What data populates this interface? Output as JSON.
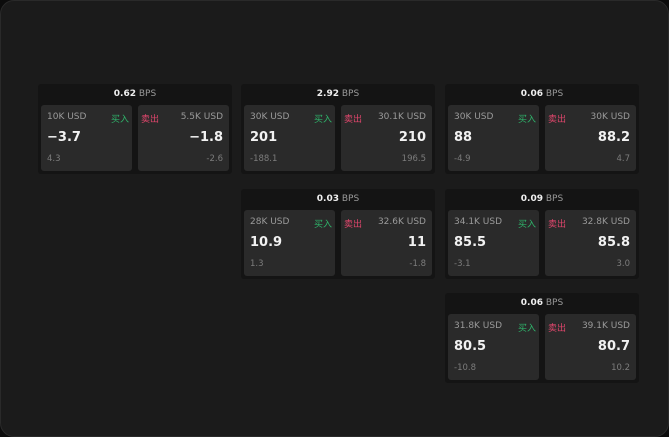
{
  "unit": "BPS",
  "buy_label": "买入",
  "sell_label": "卖出",
  "colors": {
    "buy": "#2fb36a",
    "sell": "#e0466c"
  },
  "cards": [
    {
      "spread": "0.62",
      "buy": {
        "amount": "10K USD",
        "price": "−3.7",
        "change": "4.3"
      },
      "sell": {
        "amount": "5.5K USD",
        "price": "−1.8",
        "change": "-2.6"
      }
    },
    {
      "spread": "2.92",
      "buy": {
        "amount": "30K USD",
        "price": "201",
        "change": "-188.1"
      },
      "sell": {
        "amount": "30.1K USD",
        "price": "210",
        "change": "196.5"
      }
    },
    {
      "spread": "0.06",
      "buy": {
        "amount": "30K USD",
        "price": "88",
        "change": "-4.9"
      },
      "sell": {
        "amount": "30K USD",
        "price": "88.2",
        "change": "4.7"
      }
    },
    {
      "spread": "0.03",
      "buy": {
        "amount": "28K USD",
        "price": "10.9",
        "change": "1.3"
      },
      "sell": {
        "amount": "32.6K USD",
        "price": "11",
        "change": "-1.8"
      }
    },
    {
      "spread": "0.09",
      "buy": {
        "amount": "34.1K USD",
        "price": "85.5",
        "change": "-3.1"
      },
      "sell": {
        "amount": "32.8K USD",
        "price": "85.8",
        "change": "3.0"
      }
    },
    {
      "spread": "0.06",
      "buy": {
        "amount": "31.8K USD",
        "price": "80.5",
        "change": "-10.8"
      },
      "sell": {
        "amount": "39.1K USD",
        "price": "80.7",
        "change": "10.2"
      }
    }
  ]
}
